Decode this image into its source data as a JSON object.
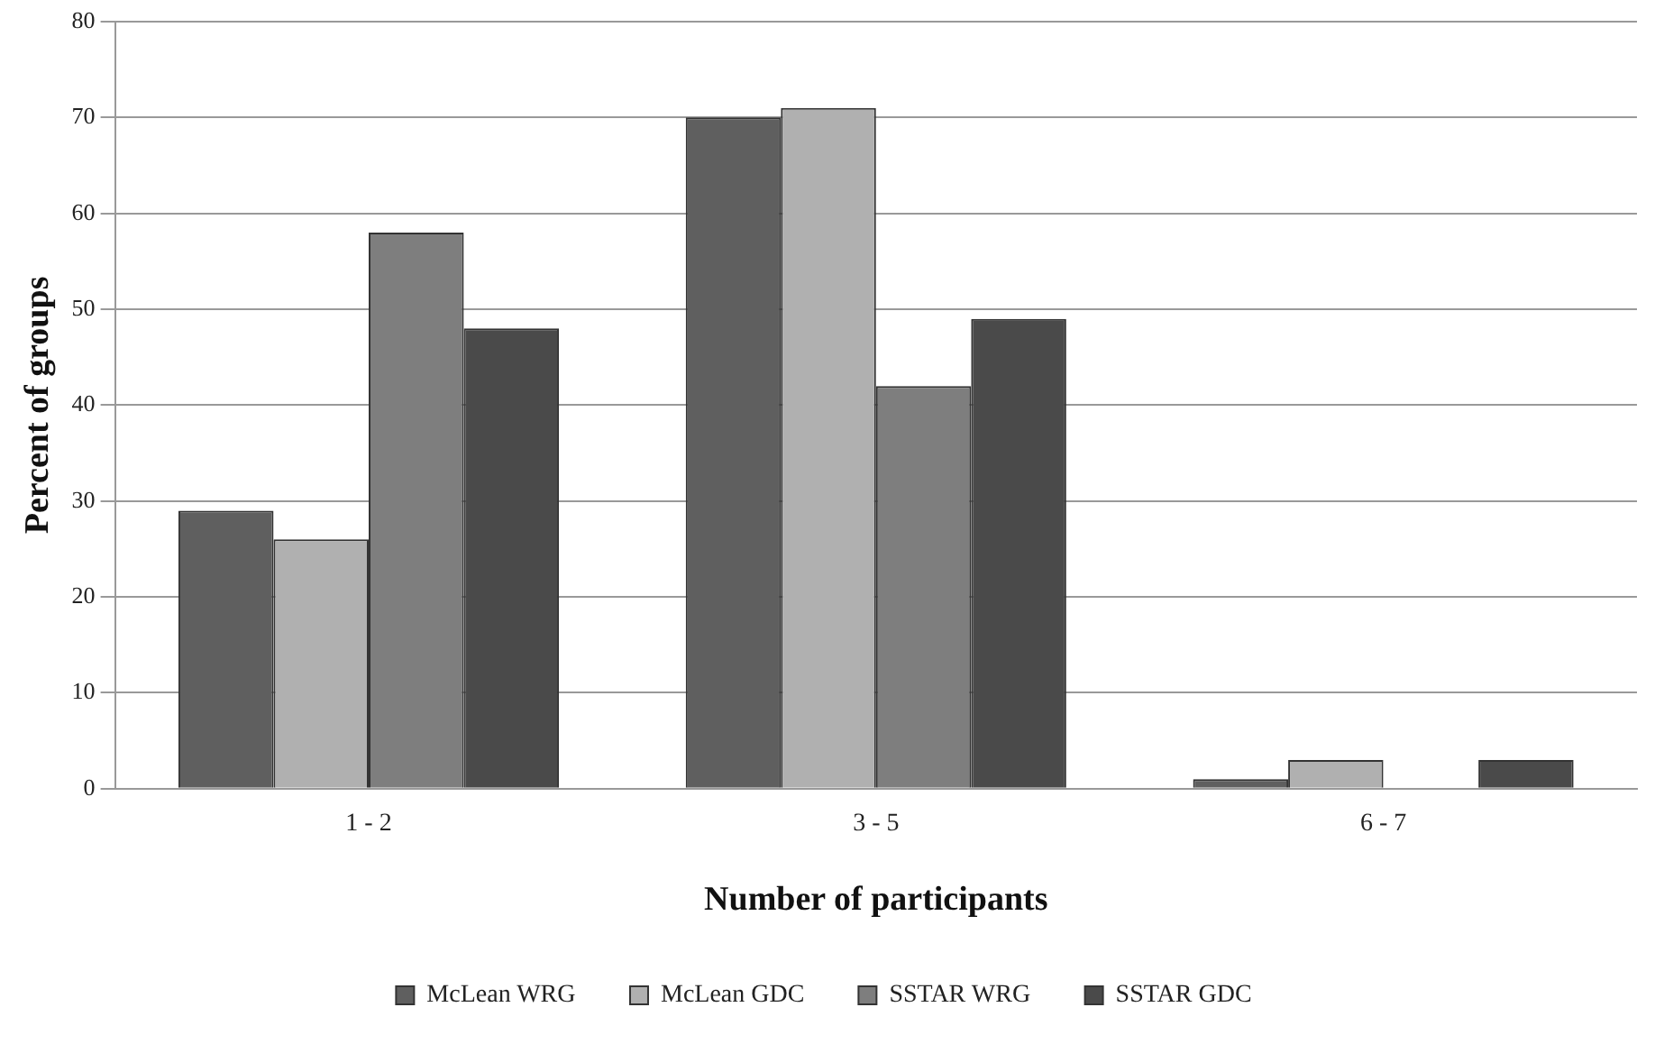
{
  "chart_data": {
    "type": "bar",
    "xlabel": "Number of participants",
    "ylabel": "Percent of groups",
    "categories": [
      "1 - 2",
      "3 - 5",
      "6 - 7"
    ],
    "series": [
      {
        "name": "McLean WRG",
        "color": "#5f5f5f",
        "values": [
          29,
          70,
          1
        ]
      },
      {
        "name": "McLean GDC",
        "color": "#b0b0b0",
        "values": [
          26,
          71,
          3
        ]
      },
      {
        "name": "SSTAR WRG",
        "color": "#7e7e7e",
        "values": [
          58,
          42,
          0
        ]
      },
      {
        "name": "SSTAR GDC",
        "color": "#4a4a4a",
        "values": [
          48,
          49,
          3
        ]
      }
    ],
    "ylim": [
      0,
      80
    ],
    "yticks": [
      0,
      10,
      20,
      30,
      40,
      50,
      60,
      70,
      80
    ],
    "grid": "y",
    "legend": "bottom"
  }
}
